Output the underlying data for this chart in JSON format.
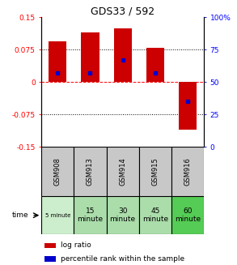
{
  "title": "GDS33 / 592",
  "samples": [
    "GSM908",
    "GSM913",
    "GSM914",
    "GSM915",
    "GSM916"
  ],
  "time_labels": [
    "5 minute",
    "15\nminute",
    "30\nminute",
    "45\nminute",
    "60\nminute"
  ],
  "time_colors": [
    "#cceecc",
    "#aaddaa",
    "#aaddaa",
    "#aaddaa",
    "#55cc55"
  ],
  "time_small": [
    true,
    false,
    false,
    false,
    false
  ],
  "log_ratios": [
    0.095,
    0.115,
    0.125,
    0.08,
    -0.11
  ],
  "percentile_ranks": [
    0.57,
    0.57,
    0.67,
    0.57,
    0.35
  ],
  "bar_color": "#cc0000",
  "percentile_color": "#0000cc",
  "ylim_left": [
    -0.15,
    0.15
  ],
  "ylim_right": [
    0,
    100
  ],
  "yticks_left": [
    -0.15,
    -0.075,
    0,
    0.075,
    0.15
  ],
  "yticks_right": [
    0,
    25,
    50,
    75,
    100
  ],
  "ytick_labels_left": [
    "-0.15",
    "-0.075",
    "0",
    "0.075",
    "0.15"
  ],
  "ytick_labels_right": [
    "0",
    "25",
    "50",
    "75",
    "100%"
  ],
  "hlines": [
    -0.075,
    0,
    0.075
  ],
  "hline_styles": [
    "dotted",
    "dashed",
    "dotted"
  ],
  "hline_colors": [
    "black",
    "red",
    "black"
  ],
  "background_color": "#ffffff",
  "plot_bg": "#ffffff",
  "bar_width": 0.55,
  "cell_bg": "#c8c8c8",
  "legend_bar_color": "#cc0000",
  "legend_pct_color": "#0000cc"
}
